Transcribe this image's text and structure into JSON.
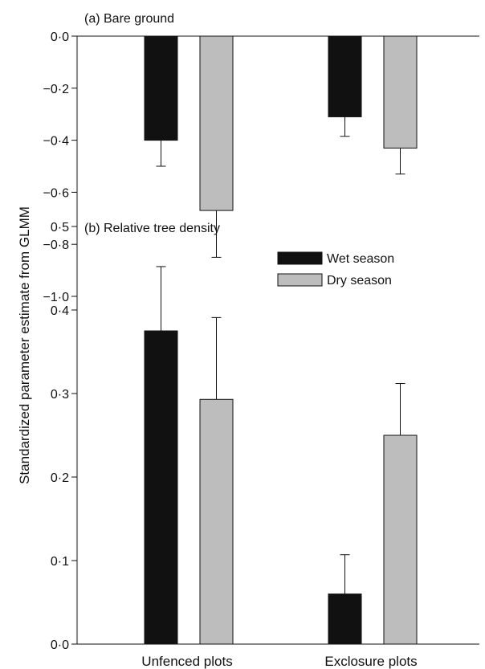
{
  "chart_data": [
    {
      "type": "bar",
      "title": "(a)  Bare ground",
      "categories": [
        "Unfenced plots",
        "Exclosure plots"
      ],
      "series": [
        {
          "name": "Wet season",
          "values": [
            -0.4,
            -0.31
          ],
          "errors": [
            0.1,
            0.075
          ],
          "color": "#111111"
        },
        {
          "name": "Dry season",
          "values": [
            -0.67,
            -0.43
          ],
          "errors": [
            0.18,
            0.1
          ],
          "color": "#bdbdbd"
        }
      ],
      "ylim": [
        -1.0,
        0.0
      ],
      "yticks": [
        0.0,
        -0.2,
        -0.4,
        -0.6,
        -0.8,
        -1.0
      ],
      "ytick_labels": [
        "0·0",
        "−0·2",
        "−0·4",
        "−0·6",
        "−0·8",
        "−1·0"
      ],
      "legend": "right"
    },
    {
      "type": "bar",
      "title": "(b)  Relative tree density",
      "categories": [
        "Unfenced plots",
        "Exclosure plots"
      ],
      "series": [
        {
          "name": "Wet season",
          "values": [
            0.375,
            0.06
          ],
          "errors": [
            0.077,
            0.047
          ],
          "color": "#111111"
        },
        {
          "name": "Dry season",
          "values": [
            0.293,
            0.25
          ],
          "errors": [
            0.098,
            0.062
          ],
          "color": "#bdbdbd"
        }
      ],
      "ylim": [
        0.0,
        0.5
      ],
      "yticks": [
        0.0,
        0.1,
        0.2,
        0.3,
        0.4,
        0.5
      ],
      "ytick_labels": [
        "0·0",
        "0·1",
        "0·2",
        "0·3",
        "0·4",
        "0·5"
      ]
    }
  ],
  "ylabel": "Standardized parameter estimate from GLMM",
  "xlabels": [
    "Unfenced plots",
    "Exclosure plots"
  ],
  "legend_items": [
    {
      "name": "Wet season",
      "color": "#111111"
    },
    {
      "name": "Dry season",
      "color": "#bdbdbd"
    }
  ]
}
